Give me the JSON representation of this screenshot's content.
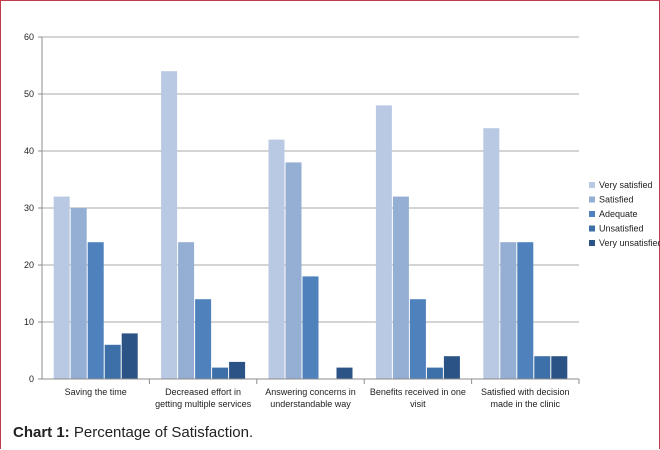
{
  "caption": {
    "lead": "Chart 1:",
    "text": " Percentage of Satisfaction."
  },
  "chart_data": {
    "type": "bar",
    "categories": [
      [
        "Saving the time"
      ],
      [
        "Decreased effort in",
        "getting multiple services"
      ],
      [
        "Answering concerns in",
        "understandable way"
      ],
      [
        "Benefits  received in one",
        "visit"
      ],
      [
        "Satisfied with decision",
        "made in the  clinic"
      ]
    ],
    "series": [
      {
        "name": "Very satisfied",
        "color": "#b9c9e3",
        "values": [
          32,
          54,
          42,
          48,
          44
        ]
      },
      {
        "name": "Satisfied",
        "color": "#94aed4",
        "values": [
          30,
          24,
          38,
          32,
          24
        ]
      },
      {
        "name": "Adequate",
        "color": "#4f81bd",
        "values": [
          24,
          14,
          18,
          14,
          24
        ]
      },
      {
        "name": "Unsatisfied",
        "color": "#3d6fa8",
        "values": [
          6,
          2,
          0,
          2,
          4
        ]
      },
      {
        "name": "Very unsatisfied",
        "color": "#2c5385",
        "values": [
          8,
          3,
          2,
          4,
          4
        ]
      }
    ],
    "ylim": [
      0,
      60
    ],
    "yticks": [
      "0",
      "10",
      "20",
      "30",
      "40",
      "50",
      "60"
    ],
    "grid": true,
    "legend": "right",
    "colors": {
      "grid": "#8c8c8c",
      "axis": "#8c8c8c"
    }
  }
}
